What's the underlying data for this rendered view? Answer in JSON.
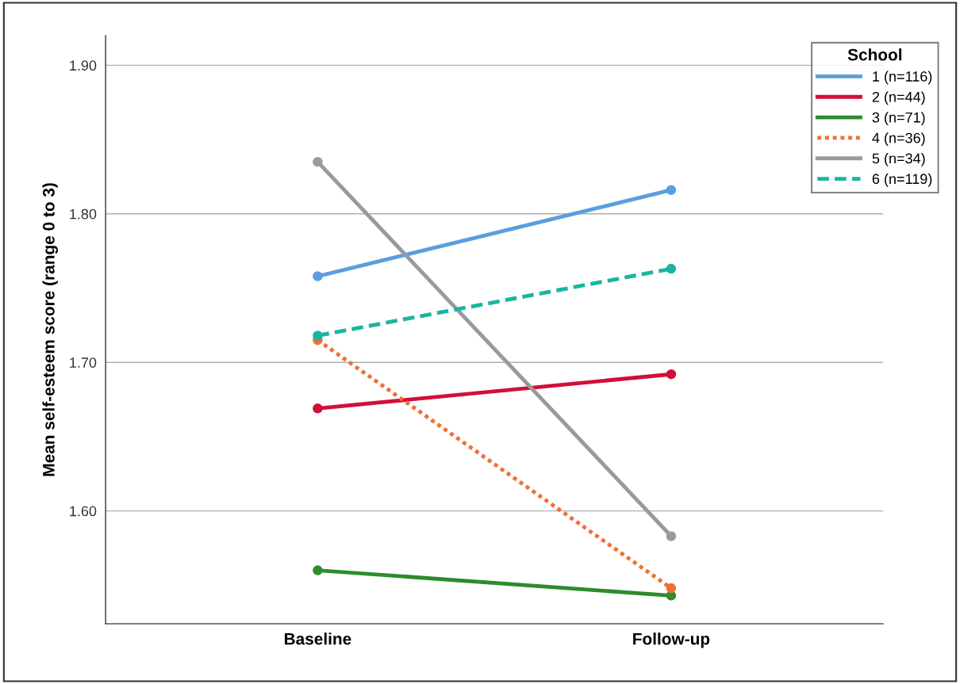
{
  "chart_data": {
    "type": "line",
    "ylabel": "Mean self-esteem score (range 0 to 3)",
    "legend_title": "School",
    "legend": "top right",
    "grid": "y",
    "marker": "circle",
    "categories": [
      "Baseline",
      "Follow-up"
    ],
    "ylim": [
      1.524,
      1.92
    ],
    "yticks": [
      {
        "value": 1.6,
        "label": "1.60"
      },
      {
        "value": 1.7,
        "label": "1.70"
      },
      {
        "value": 1.8,
        "label": "1.80"
      },
      {
        "value": 1.9,
        "label": "1.90"
      }
    ],
    "series": [
      {
        "name": "1 (n=116)",
        "color": "#5a9ee0",
        "line_style": "solid",
        "values": [
          1.758,
          1.816
        ]
      },
      {
        "name": "2 (n=44)",
        "color": "#d0103a",
        "line_style": "solid",
        "values": [
          1.669,
          1.692
        ]
      },
      {
        "name": "3 (n=71)",
        "color": "#2e8b2e",
        "line_style": "solid",
        "values": [
          1.56,
          1.543
        ]
      },
      {
        "name": "4 (n=36)",
        "color": "#f07032",
        "line_style": "dotted",
        "values": [
          1.715,
          1.548
        ]
      },
      {
        "name": "5 (n=34)",
        "color": "#9a9a9a",
        "line_style": "solid",
        "values": [
          1.835,
          1.583
        ]
      },
      {
        "name": "6 (n=119)",
        "color": "#1ab5a0",
        "line_style": "dashed",
        "values": [
          1.718,
          1.763
        ]
      }
    ]
  }
}
